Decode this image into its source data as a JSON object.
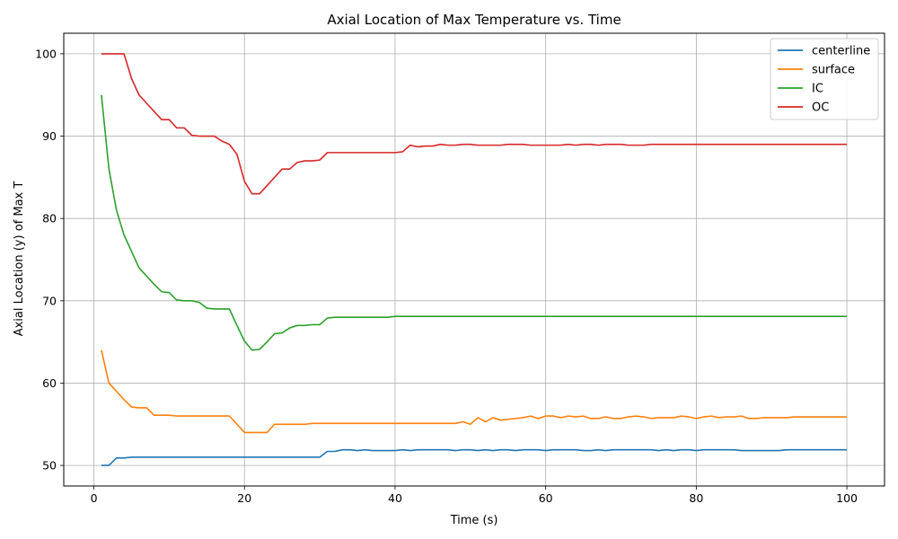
{
  "chart_data": {
    "type": "line",
    "title": "Axial Location of Max Temperature vs. Time",
    "xlabel": "Time (s)",
    "ylabel": "Axial Location (y) of Max T",
    "xlim": [
      -4,
      105
    ],
    "ylim": [
      47.5,
      102.5
    ],
    "xticks": [
      0,
      20,
      40,
      60,
      80,
      100
    ],
    "yticks": [
      50,
      60,
      70,
      80,
      90,
      100
    ],
    "grid": true,
    "legend_position": "top-right",
    "series": [
      {
        "name": "centerline",
        "color": "#1f77b4",
        "points": [
          [
            1,
            50
          ],
          [
            2,
            50
          ],
          [
            3,
            50.9
          ],
          [
            4,
            50.9
          ],
          [
            5,
            51
          ],
          [
            18,
            51
          ],
          [
            19,
            51
          ],
          [
            20,
            51
          ],
          [
            30,
            51
          ],
          [
            31,
            51.7
          ],
          [
            32,
            51.7
          ],
          [
            33,
            51.9
          ],
          [
            34,
            51.9
          ],
          [
            35,
            51.8
          ],
          [
            36,
            51.9
          ],
          [
            37,
            51.8
          ],
          [
            40,
            51.8
          ],
          [
            41,
            51.9
          ],
          [
            42,
            51.8
          ],
          [
            43,
            51.9
          ],
          [
            47,
            51.9
          ],
          [
            48,
            51.8
          ],
          [
            49,
            51.9
          ],
          [
            50,
            51.9
          ],
          [
            51,
            51.8
          ],
          [
            52,
            51.9
          ],
          [
            53,
            51.8
          ],
          [
            54,
            51.9
          ],
          [
            55,
            51.9
          ],
          [
            56,
            51.8
          ],
          [
            57,
            51.9
          ],
          [
            59,
            51.9
          ],
          [
            60,
            51.8
          ],
          [
            61,
            51.9
          ],
          [
            64,
            51.9
          ],
          [
            65,
            51.8
          ],
          [
            66,
            51.8
          ],
          [
            67,
            51.9
          ],
          [
            68,
            51.8
          ],
          [
            69,
            51.9
          ],
          [
            74,
            51.9
          ],
          [
            75,
            51.8
          ],
          [
            76,
            51.9
          ],
          [
            77,
            51.8
          ],
          [
            78,
            51.9
          ],
          [
            79,
            51.9
          ],
          [
            80,
            51.8
          ],
          [
            81,
            51.9
          ],
          [
            85,
            51.9
          ],
          [
            86,
            51.8
          ],
          [
            91,
            51.8
          ],
          [
            92,
            51.9
          ],
          [
            100,
            51.9
          ]
        ]
      },
      {
        "name": "surface",
        "color": "#ff7f0e",
        "points": [
          [
            1,
            64
          ],
          [
            2,
            60
          ],
          [
            3,
            59
          ],
          [
            4,
            58
          ],
          [
            5,
            57.1
          ],
          [
            6,
            57
          ],
          [
            7,
            57
          ],
          [
            8,
            56.1
          ],
          [
            10,
            56.1
          ],
          [
            11,
            56
          ],
          [
            18,
            56
          ],
          [
            19,
            55
          ],
          [
            20,
            54
          ],
          [
            23,
            54
          ],
          [
            24,
            55
          ],
          [
            28,
            55
          ],
          [
            29,
            55.1
          ],
          [
            48,
            55.1
          ],
          [
            49,
            55.3
          ],
          [
            50,
            55
          ],
          [
            51,
            55.8
          ],
          [
            52,
            55.3
          ],
          [
            53,
            55.8
          ],
          [
            54,
            55.5
          ],
          [
            56,
            55.7
          ],
          [
            57,
            55.8
          ],
          [
            58,
            56
          ],
          [
            59,
            55.7
          ],
          [
            60,
            56
          ],
          [
            61,
            56
          ],
          [
            62,
            55.8
          ],
          [
            63,
            56
          ],
          [
            64,
            55.9
          ],
          [
            65,
            56
          ],
          [
            66,
            55.7
          ],
          [
            67,
            55.7
          ],
          [
            68,
            55.9
          ],
          [
            69,
            55.7
          ],
          [
            70,
            55.7
          ],
          [
            71,
            55.9
          ],
          [
            72,
            56
          ],
          [
            73,
            55.9
          ],
          [
            74,
            55.7
          ],
          [
            75,
            55.8
          ],
          [
            77,
            55.8
          ],
          [
            78,
            56
          ],
          [
            79,
            55.9
          ],
          [
            80,
            55.7
          ],
          [
            81,
            55.9
          ],
          [
            82,
            56
          ],
          [
            83,
            55.8
          ],
          [
            84,
            55.9
          ],
          [
            85,
            55.9
          ],
          [
            86,
            56
          ],
          [
            87,
            55.7
          ],
          [
            88,
            55.7
          ],
          [
            89,
            55.8
          ],
          [
            92,
            55.8
          ],
          [
            93,
            55.9
          ],
          [
            100,
            55.9
          ]
        ]
      },
      {
        "name": "IC",
        "color": "#2ca02c",
        "points": [
          [
            1,
            95
          ],
          [
            2,
            86
          ],
          [
            3,
            81
          ],
          [
            4,
            78
          ],
          [
            5,
            76
          ],
          [
            6,
            74
          ],
          [
            7,
            73
          ],
          [
            8,
            72
          ],
          [
            9,
            71.1
          ],
          [
            10,
            71
          ],
          [
            11,
            70.1
          ],
          [
            12,
            70
          ],
          [
            13,
            70
          ],
          [
            14,
            69.8
          ],
          [
            15,
            69.1
          ],
          [
            16,
            69
          ],
          [
            18,
            69
          ],
          [
            19,
            67
          ],
          [
            20,
            65.1
          ],
          [
            21,
            64
          ],
          [
            22,
            64.1
          ],
          [
            23,
            65
          ],
          [
            24,
            66
          ],
          [
            25,
            66.1
          ],
          [
            26,
            66.7
          ],
          [
            27,
            67
          ],
          [
            28,
            67
          ],
          [
            29,
            67.1
          ],
          [
            30,
            67.1
          ],
          [
            31,
            67.9
          ],
          [
            32,
            68
          ],
          [
            39,
            68
          ],
          [
            40,
            68.1
          ],
          [
            100,
            68.1
          ]
        ]
      },
      {
        "name": "OC",
        "color": "#d62728",
        "points": [
          [
            1,
            100
          ],
          [
            4,
            100
          ],
          [
            5,
            97
          ],
          [
            6,
            95
          ],
          [
            7,
            94
          ],
          [
            8,
            93
          ],
          [
            9,
            92
          ],
          [
            10,
            92
          ],
          [
            11,
            91
          ],
          [
            12,
            91
          ],
          [
            13,
            90.1
          ],
          [
            14,
            90
          ],
          [
            16,
            90
          ],
          [
            17,
            89.4
          ],
          [
            18,
            89
          ],
          [
            19,
            87.8
          ],
          [
            20,
            84.5
          ],
          [
            21,
            83
          ],
          [
            22,
            83
          ],
          [
            23,
            84
          ],
          [
            24,
            85
          ],
          [
            25,
            86
          ],
          [
            26,
            86
          ],
          [
            27,
            86.8
          ],
          [
            28,
            87
          ],
          [
            29,
            87
          ],
          [
            30,
            87.1
          ],
          [
            31,
            88
          ],
          [
            40,
            88
          ],
          [
            41,
            88.1
          ],
          [
            42,
            88.9
          ],
          [
            43,
            88.7
          ],
          [
            44,
            88.8
          ],
          [
            45,
            88.8
          ],
          [
            46,
            89
          ],
          [
            47,
            88.9
          ],
          [
            48,
            88.9
          ],
          [
            49,
            89
          ],
          [
            50,
            89
          ],
          [
            51,
            88.9
          ],
          [
            54,
            88.9
          ],
          [
            55,
            89
          ],
          [
            57,
            89
          ],
          [
            58,
            88.9
          ],
          [
            62,
            88.9
          ],
          [
            63,
            89
          ],
          [
            64,
            88.9
          ],
          [
            65,
            89
          ],
          [
            66,
            89
          ],
          [
            67,
            88.9
          ],
          [
            68,
            89
          ],
          [
            70,
            89
          ],
          [
            71,
            88.9
          ],
          [
            73,
            88.9
          ],
          [
            74,
            89
          ],
          [
            100,
            89
          ]
        ]
      }
    ]
  }
}
